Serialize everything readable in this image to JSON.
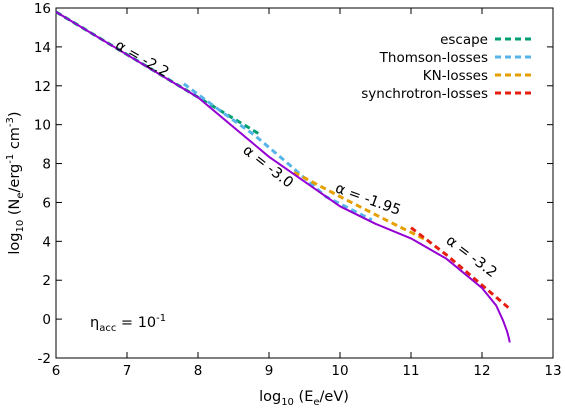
{
  "chart_data": {
    "type": "line",
    "xlabel": {
      "pre": "log",
      "pre_sub": "10",
      "mid": " (E",
      "mid_sub": "e",
      "post": "/eV)"
    },
    "ylabel": {
      "pre": "log",
      "pre_sub": "10",
      "mid": " (N",
      "mid_sub": "e",
      "mid2": "/erg",
      "mid2_sup": "-1",
      "post": " cm",
      "post_sup": "-3",
      "end": ")"
    },
    "xlim": [
      6,
      13
    ],
    "ylim": [
      -2,
      16
    ],
    "xticks": [
      "6",
      "7",
      "8",
      "9",
      "10",
      "11",
      "12",
      "13"
    ],
    "xtick_values": [
      6,
      7,
      8,
      9,
      10,
      11,
      12,
      13
    ],
    "yticks": [
      "-2",
      "0",
      "2",
      "4",
      "6",
      "8",
      "10",
      "12",
      "14",
      "16"
    ],
    "ytick_values": [
      -2,
      0,
      2,
      4,
      6,
      8,
      10,
      12,
      14,
      16
    ],
    "grid": false,
    "legend_position": "top-right",
    "series": [
      {
        "name": "",
        "color": "#9400d3",
        "style": "solid",
        "x": [
          6,
          7,
          8,
          9,
          10,
          10.5,
          11,
          11.5,
          12,
          12.2,
          12.3,
          12.35,
          12.38,
          12.39
        ],
        "y": [
          15.8,
          13.6,
          11.4,
          8.35,
          5.8,
          4.9,
          4.15,
          3.1,
          1.6,
          0.7,
          -0.1,
          -0.6,
          -1.0,
          -1.2
        ]
      },
      {
        "name": "escape",
        "color": "#009e73",
        "style": "dashed",
        "x": [
          6,
          8.85
        ],
        "y": [
          15.8,
          9.55
        ]
      },
      {
        "name": "Thomson-losses",
        "color": "#56b4e9",
        "style": "dashed",
        "x": [
          7.8,
          8.3,
          8.8,
          9.3,
          9.8,
          10.45
        ],
        "y": [
          12.1,
          10.75,
          9.45,
          7.9,
          6.3,
          5.1
        ]
      },
      {
        "name": "KN-losses",
        "color": "#e69f00",
        "style": "dashed",
        "x": [
          9.35,
          10.0,
          10.7,
          11.2
        ],
        "y": [
          7.55,
          6.3,
          5.0,
          4.1
        ]
      },
      {
        "name": "synchrotron-losses",
        "color": "#e51e10",
        "style": "dashed",
        "x": [
          11.0,
          11.5,
          12.0,
          12.4
        ],
        "y": [
          4.7,
          3.3,
          1.75,
          0.5
        ]
      }
    ],
    "annotations": [
      {
        "text": "α = -2.2",
        "x": 6.82,
        "y": 13.95,
        "angle": 30
      },
      {
        "text": "α = -3.0",
        "x": 8.62,
        "y": 8.6,
        "angle": 38
      },
      {
        "text": "α = -1.95",
        "x": 9.92,
        "y": 6.55,
        "angle": 20
      },
      {
        "text": "α = -3.2",
        "x": 11.48,
        "y": 3.95,
        "angle": 37
      }
    ],
    "eta_label": {
      "sym": "η",
      "sub": "acc",
      "eq": " = 10",
      "sup": "-1"
    }
  }
}
